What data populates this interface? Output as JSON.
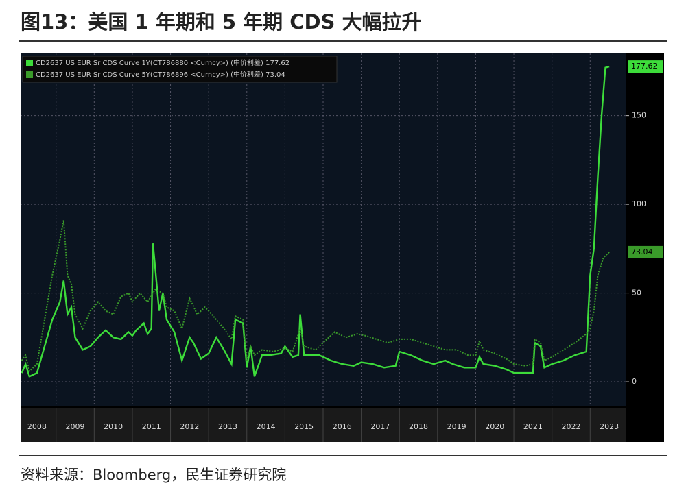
{
  "title": "图13：美国 1 年期和 5 年期 CDS 大幅拉升",
  "source": "资料来源：Bloomberg，民生证券研究院",
  "chart_data": {
    "type": "line",
    "xlim": [
      2008.07,
      2023.93
    ],
    "ylim": [
      -13.5,
      185
    ],
    "xticks": [
      2008,
      2009,
      2010,
      2011,
      2012,
      2013,
      2014,
      2015,
      2016,
      2017,
      2018,
      2019,
      2020,
      2021,
      2022,
      2023
    ],
    "yticks": [
      0,
      50,
      100,
      150
    ],
    "grid": true,
    "series": [
      {
        "name": "CD2637 US EUR Sr CDS Curve 1Y(CT786880 <Curncy>) (中价利差) 177.62",
        "color": "#3ddc3a",
        "style": "solid",
        "x": [
          2008.1,
          2008.2,
          2008.3,
          2008.5,
          2008.7,
          2008.9,
          2009.1,
          2009.2,
          2009.3,
          2009.4,
          2009.5,
          2009.7,
          2009.9,
          2010.1,
          2010.3,
          2010.5,
          2010.7,
          2010.9,
          2011.0,
          2011.1,
          2011.3,
          2011.4,
          2011.5,
          2011.54,
          2011.7,
          2011.8,
          2011.9,
          2012.1,
          2012.3,
          2012.5,
          2012.6,
          2012.8,
          2013.0,
          2013.2,
          2013.4,
          2013.6,
          2013.7,
          2013.9,
          2014.0,
          2014.1,
          2014.2,
          2014.4,
          2014.6,
          2014.9,
          2015.0,
          2015.2,
          2015.35,
          2015.4,
          2015.5,
          2015.9,
          2016.2,
          2016.5,
          2016.8,
          2017.0,
          2017.3,
          2017.6,
          2017.9,
          2018.0,
          2018.3,
          2018.6,
          2018.9,
          2019.2,
          2019.4,
          2019.7,
          2020.0,
          2020.1,
          2020.2,
          2020.5,
          2020.8,
          2021.0,
          2021.3,
          2021.5,
          2021.55,
          2021.7,
          2021.8,
          2022.0,
          2022.3,
          2022.6,
          2022.9,
          2023.0,
          2023.1,
          2023.2,
          2023.3,
          2023.4,
          2023.5
        ],
        "values": [
          5,
          10,
          3,
          5,
          20,
          35,
          45,
          57,
          38,
          42,
          25,
          18,
          20,
          25,
          29,
          25,
          24,
          28,
          26,
          29,
          33,
          27,
          30,
          78,
          40,
          50,
          35,
          28,
          12,
          25,
          22,
          13,
          16,
          25,
          18,
          10,
          35,
          33,
          8,
          20,
          3,
          15,
          15,
          16,
          20,
          14,
          15,
          38,
          15,
          15,
          12,
          10,
          9,
          11,
          10,
          8,
          9,
          17,
          15,
          12,
          10,
          12,
          10,
          8,
          8,
          14,
          10,
          9,
          7,
          5,
          5,
          5,
          22,
          20,
          8,
          10,
          12,
          15,
          17,
          60,
          75,
          115,
          150,
          177,
          177.62
        ]
      },
      {
        "name": "CD2637 US EUR Sr CDS Curve 5Y(CT786896 <Curncy>) (中价利差) 73.04",
        "color": "#3a9a2a",
        "style": "dotted",
        "x": [
          2008.1,
          2008.2,
          2008.3,
          2008.5,
          2008.7,
          2008.9,
          2009.1,
          2009.2,
          2009.3,
          2009.4,
          2009.5,
          2009.7,
          2009.9,
          2010.1,
          2010.3,
          2010.5,
          2010.7,
          2010.9,
          2011.0,
          2011.2,
          2011.4,
          2011.6,
          2011.8,
          2011.9,
          2012.1,
          2012.3,
          2012.5,
          2012.7,
          2012.9,
          2013.0,
          2013.2,
          2013.4,
          2013.6,
          2013.7,
          2013.9,
          2014.0,
          2014.1,
          2014.2,
          2014.4,
          2014.7,
          2015.0,
          2015.2,
          2015.4,
          2015.5,
          2015.8,
          2016.0,
          2016.3,
          2016.6,
          2016.9,
          2017.1,
          2017.4,
          2017.7,
          2018.0,
          2018.3,
          2018.6,
          2018.9,
          2019.2,
          2019.5,
          2019.8,
          2020.0,
          2020.1,
          2020.2,
          2020.5,
          2020.8,
          2021.0,
          2021.3,
          2021.5,
          2021.55,
          2021.7,
          2021.8,
          2022.0,
          2022.3,
          2022.6,
          2022.9,
          2023.0,
          2023.1,
          2023.2,
          2023.35,
          2023.5
        ],
        "values": [
          12,
          15,
          6,
          10,
          35,
          60,
          80,
          91,
          60,
          55,
          38,
          30,
          40,
          45,
          40,
          38,
          48,
          50,
          45,
          50,
          45,
          52,
          50,
          42,
          40,
          30,
          47,
          38,
          42,
          40,
          35,
          30,
          24,
          37,
          35,
          12,
          20,
          15,
          18,
          17,
          19,
          17,
          30,
          20,
          18,
          22,
          28,
          25,
          27,
          26,
          24,
          22,
          24,
          24,
          22,
          20,
          18,
          18,
          15,
          15,
          23,
          18,
          16,
          13,
          10,
          9,
          10,
          24,
          22,
          12,
          14,
          18,
          22,
          27,
          30,
          40,
          60,
          70,
          73.04
        ]
      }
    ]
  }
}
